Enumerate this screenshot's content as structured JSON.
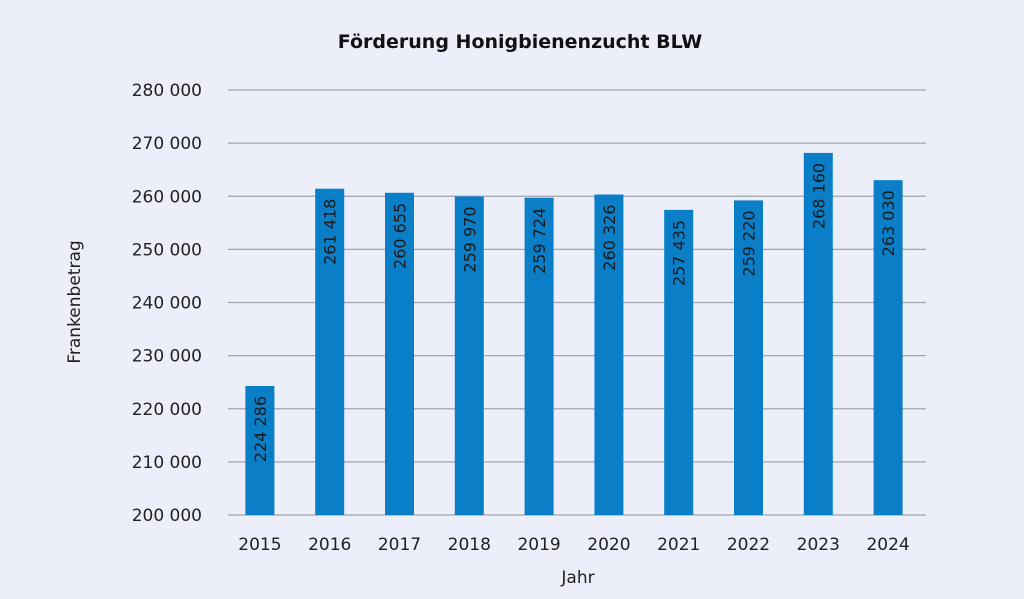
{
  "chart_data": {
    "type": "bar",
    "title": "Förderung Honigbienenzucht BLW",
    "xlabel": "Jahr",
    "ylabel": "Frankenbetrag",
    "categories": [
      "2015",
      "2016",
      "2017",
      "2018",
      "2019",
      "2020",
      "2021",
      "2022",
      "2023",
      "2024"
    ],
    "values": [
      224286,
      261418,
      260655,
      259970,
      259724,
      260326,
      257435,
      259220,
      268160,
      263030
    ],
    "data_labels": [
      "224 286",
      "261 418",
      "260 655",
      "259 970",
      "259 724",
      "260 326",
      "257 435",
      "259 220",
      "268 160",
      "263 030"
    ],
    "ylim": [
      200000,
      280000
    ],
    "yticks": [
      200000,
      210000,
      220000,
      230000,
      240000,
      250000,
      260000,
      270000,
      280000
    ],
    "ytick_labels": [
      "200 000",
      "210 000",
      "220 000",
      "230 000",
      "240 000",
      "250 000",
      "260 000",
      "270 000",
      "280 000"
    ],
    "grid": true,
    "bar_color": "#0a7fc8"
  }
}
